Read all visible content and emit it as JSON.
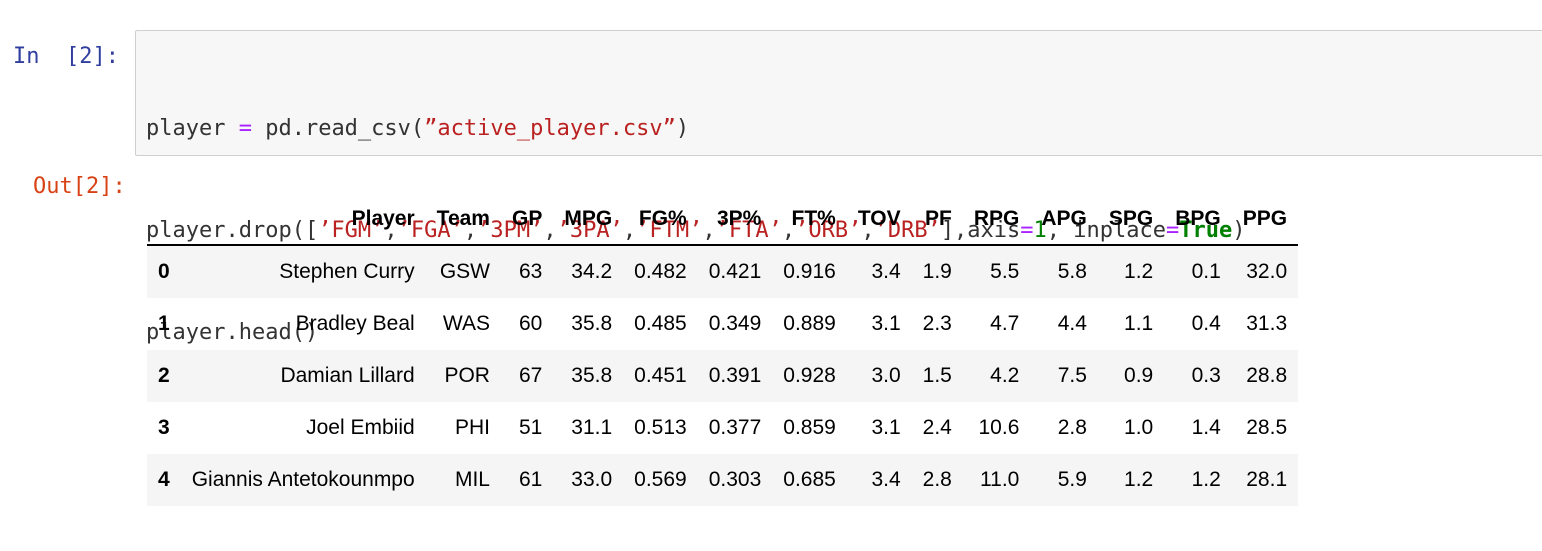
{
  "input_cell": {
    "prompt": "In  [2]:",
    "code": {
      "line1": {
        "a": "player ",
        "b": "=",
        "c": " pd.read_csv(",
        "d": "”active_player.csv”",
        "e": ")"
      },
      "line2": {
        "a": "player.drop([",
        "s1": "’FGM’",
        "s2": "’FGA’",
        "s3": "’3PM’",
        "s4": "’3PA’",
        "s5": "’FTM’",
        "s6": "’FTA’",
        "s7": "’ORB’",
        "s8": "’DRB’",
        "comma": ",",
        "b": "],axis",
        "eq": "=",
        "n": "1",
        "c": ", inplace",
        "kw": "True",
        "d": ")"
      },
      "line3": "player.head()"
    }
  },
  "output_cell": {
    "prompt": "Out[2]:",
    "table": {
      "columns": [
        "Player",
        "Team",
        "GP",
        "MPG",
        "FG%",
        "3P%",
        "FT%",
        "TOV",
        "PF",
        "RPG",
        "APG",
        "SPG",
        "BPG",
        "PPG"
      ],
      "rows": [
        {
          "index": "0",
          "cells": [
            "Stephen Curry",
            "GSW",
            "63",
            "34.2",
            "0.482",
            "0.421",
            "0.916",
            "3.4",
            "1.9",
            "5.5",
            "5.8",
            "1.2",
            "0.1",
            "32.0"
          ]
        },
        {
          "index": "1",
          "cells": [
            "Bradley Beal",
            "WAS",
            "60",
            "35.8",
            "0.485",
            "0.349",
            "0.889",
            "3.1",
            "2.3",
            "4.7",
            "4.4",
            "1.1",
            "0.4",
            "31.3"
          ]
        },
        {
          "index": "2",
          "cells": [
            "Damian Lillard",
            "POR",
            "67",
            "35.8",
            "0.451",
            "0.391",
            "0.928",
            "3.0",
            "1.5",
            "4.2",
            "7.5",
            "0.9",
            "0.3",
            "28.8"
          ]
        },
        {
          "index": "3",
          "cells": [
            "Joel Embiid",
            "PHI",
            "51",
            "31.1",
            "0.513",
            "0.377",
            "0.859",
            "3.1",
            "2.4",
            "10.6",
            "2.8",
            "1.0",
            "1.4",
            "28.5"
          ]
        },
        {
          "index": "4",
          "cells": [
            "Giannis Antetokounmpo",
            "MIL",
            "61",
            "33.0",
            "0.569",
            "0.303",
            "0.685",
            "3.4",
            "2.8",
            "11.0",
            "5.9",
            "1.2",
            "1.2",
            "28.1"
          ]
        }
      ]
    }
  }
}
